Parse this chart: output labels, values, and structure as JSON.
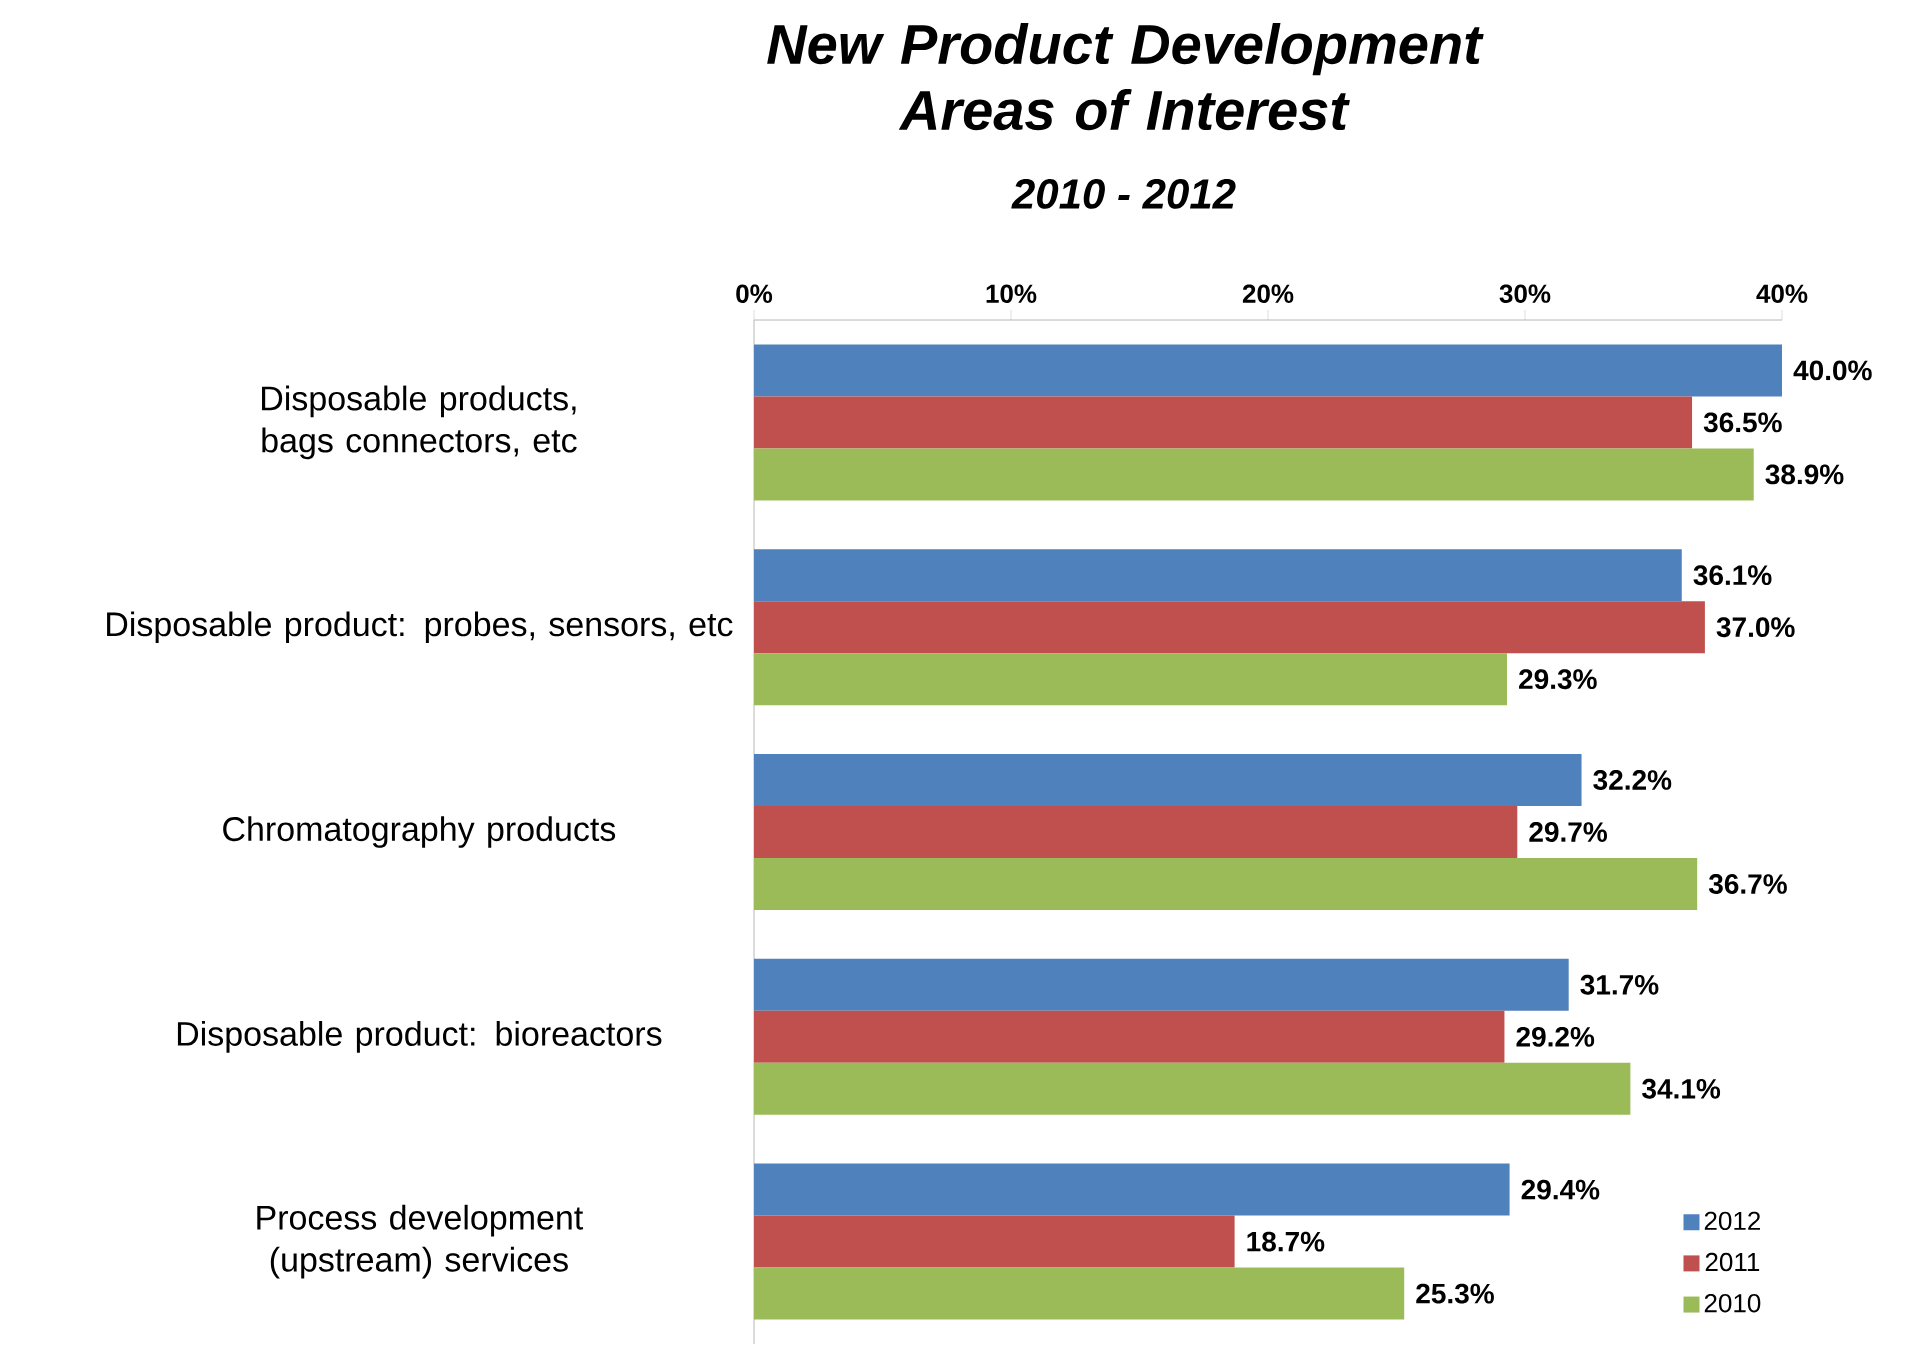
{
  "chart_data": {
    "type": "bar",
    "orientation": "horizontal",
    "title": "New Product Development Areas of Interest",
    "subtitle": "2010 - 2012",
    "categories": [
      "Disposable products, bags connectors, etc",
      "Disposable product: probes, sensors, etc",
      "Chromatography products",
      "Disposable product: bioreactors",
      "Process development (upstream) services"
    ],
    "series": [
      {
        "name": "2012",
        "color": "#4f81bd",
        "values": [
          40.0,
          36.1,
          32.2,
          31.7,
          29.4
        ],
        "value_labels": [
          "40.0%",
          "36.1%",
          "32.2%",
          "31.7%",
          "29.4%"
        ]
      },
      {
        "name": "2011",
        "color": "#c0504d",
        "values": [
          36.5,
          37.0,
          29.7,
          29.2,
          18.7
        ],
        "value_labels": [
          "36.5%",
          "37.0%",
          "29.7%",
          "29.2%",
          "18.7%"
        ]
      },
      {
        "name": "2010",
        "color": "#9bbb59",
        "values": [
          38.9,
          29.3,
          36.7,
          34.1,
          25.3
        ],
        "value_labels": [
          "38.9%",
          "29.3%",
          "36.7%",
          "34.1%",
          "25.3%"
        ]
      }
    ],
    "xlim": [
      0,
      40
    ],
    "xticks": [
      {
        "value": 0,
        "label": "0%"
      },
      {
        "value": 10,
        "label": "10%"
      },
      {
        "value": 20,
        "label": "20%"
      },
      {
        "value": 30,
        "label": "30%"
      },
      {
        "value": 40,
        "label": "40%"
      }
    ],
    "legend": "bottom right",
    "grid": false
  }
}
